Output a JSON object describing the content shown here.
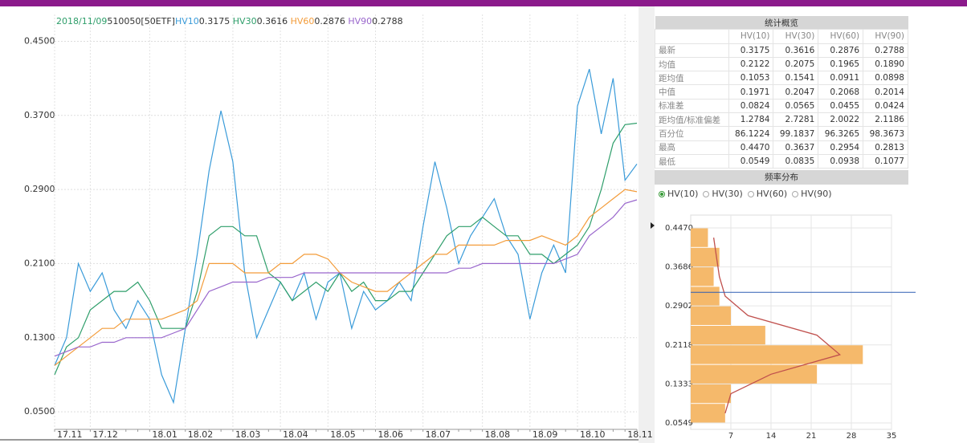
{
  "chart_data": [
    {
      "type": "line",
      "date": "2018/11/09",
      "security": "510050[50ETF]",
      "categories": [
        "17.11",
        null,
        null,
        "17.12",
        null,
        null,
        null,
        null,
        "18.01",
        null,
        null,
        "18.02",
        null,
        null,
        null,
        "18.03",
        null,
        null,
        null,
        "18.04",
        null,
        null,
        null,
        "18.05",
        null,
        null,
        null,
        "18.06",
        null,
        null,
        null,
        "18.07",
        null,
        null,
        null,
        null,
        "18.08",
        null,
        null,
        null,
        "18.09",
        null,
        null,
        null,
        "18.10",
        null,
        null,
        null,
        "18.11",
        null
      ],
      "series": [
        {
          "name": "HV10",
          "color": "#3a9bd9",
          "values": [
            0.1,
            0.13,
            0.21,
            0.18,
            0.2,
            0.16,
            0.14,
            0.17,
            0.15,
            0.09,
            0.06,
            0.14,
            0.22,
            0.31,
            0.375,
            0.32,
            0.2,
            0.13,
            0.16,
            0.19,
            0.17,
            0.2,
            0.15,
            0.19,
            0.2,
            0.14,
            0.18,
            0.16,
            0.17,
            0.19,
            0.17,
            0.25,
            0.32,
            0.27,
            0.21,
            0.24,
            0.26,
            0.28,
            0.24,
            0.22,
            0.15,
            0.2,
            0.23,
            0.2,
            0.38,
            0.42,
            0.35,
            0.41,
            0.3,
            0.3175
          ]
        },
        {
          "name": "HV30",
          "color": "#2e9e6a",
          "values": [
            0.09,
            0.12,
            0.13,
            0.16,
            0.17,
            0.18,
            0.18,
            0.19,
            0.17,
            0.14,
            0.14,
            0.14,
            0.18,
            0.24,
            0.25,
            0.25,
            0.24,
            0.24,
            0.2,
            0.19,
            0.17,
            0.18,
            0.19,
            0.18,
            0.2,
            0.18,
            0.19,
            0.17,
            0.17,
            0.18,
            0.18,
            0.2,
            0.22,
            0.24,
            0.25,
            0.25,
            0.26,
            0.25,
            0.24,
            0.24,
            0.22,
            0.22,
            0.21,
            0.22,
            0.23,
            0.25,
            0.29,
            0.34,
            0.36,
            0.3616
          ]
        },
        {
          "name": "HV60",
          "color": "#f39c3a",
          "values": [
            0.1,
            0.11,
            0.12,
            0.13,
            0.14,
            0.14,
            0.15,
            0.15,
            0.15,
            0.15,
            0.155,
            0.16,
            0.17,
            0.21,
            0.21,
            0.21,
            0.2,
            0.2,
            0.2,
            0.21,
            0.21,
            0.22,
            0.22,
            0.215,
            0.2,
            0.19,
            0.185,
            0.18,
            0.18,
            0.19,
            0.2,
            0.21,
            0.22,
            0.22,
            0.23,
            0.23,
            0.23,
            0.23,
            0.235,
            0.235,
            0.235,
            0.24,
            0.235,
            0.23,
            0.24,
            0.26,
            0.27,
            0.28,
            0.29,
            0.2876
          ]
        },
        {
          "name": "HV90",
          "color": "#9966cc",
          "values": [
            0.11,
            0.115,
            0.12,
            0.12,
            0.125,
            0.125,
            0.13,
            0.13,
            0.13,
            0.13,
            0.135,
            0.14,
            0.16,
            0.18,
            0.185,
            0.19,
            0.19,
            0.19,
            0.195,
            0.195,
            0.195,
            0.2,
            0.2,
            0.2,
            0.2,
            0.2,
            0.2,
            0.2,
            0.2,
            0.2,
            0.2,
            0.2,
            0.2,
            0.2,
            0.205,
            0.205,
            0.21,
            0.21,
            0.21,
            0.21,
            0.21,
            0.21,
            0.21,
            0.215,
            0.22,
            0.24,
            0.25,
            0.26,
            0.275,
            0.2788
          ]
        }
      ],
      "ylim": [
        0.031,
        0.479
      ],
      "yticks": [
        {
          "value": 0.05,
          "label": "0.0500"
        },
        {
          "value": 0.13,
          "label": "0.1300"
        },
        {
          "value": 0.21,
          "label": "0.2100"
        },
        {
          "value": 0.29,
          "label": "0.2900"
        },
        {
          "value": 0.37,
          "label": "0.3700"
        },
        {
          "value": 0.45,
          "label": "0.4500"
        }
      ],
      "grid": true
    },
    {
      "type": "histogram",
      "orientation": "horizontal",
      "color": "#f5b96b",
      "bins": [
        0.0549,
        0.0941,
        0.1333,
        0.1725,
        0.2118,
        0.251,
        0.2902,
        0.3294,
        0.3686,
        0.4078,
        0.447
      ],
      "counts": [
        6,
        7,
        22,
        30,
        13,
        7,
        5,
        4,
        5,
        3
      ],
      "curve": {
        "color": "#c0504d",
        "values": [
          6,
          7,
          14,
          26,
          22,
          10,
          6,
          5,
          4.5,
          4
        ]
      },
      "marker_line": {
        "color": "#2f5fb3",
        "value": 0.3175
      },
      "ylim": [
        0.0549,
        0.4728
      ],
      "yticks": [
        {
          "value": 0.0549,
          "label": "0.0549"
        },
        {
          "value": 0.1333,
          "label": "0.1333"
        },
        {
          "value": 0.2118,
          "label": "0.2118"
        },
        {
          "value": 0.2902,
          "label": "0.2902"
        },
        {
          "value": 0.3686,
          "label": "0.3686"
        },
        {
          "value": 0.447,
          "label": "0.4470"
        }
      ],
      "xlim": [
        0,
        35
      ],
      "xticks": [
        7,
        14,
        21,
        28,
        35
      ],
      "grid": true
    }
  ],
  "stats_table": {
    "title": "统计概览",
    "columns": [
      "HV(10)",
      "HV(30)",
      "HV(60)",
      "HV(90)"
    ],
    "rows": [
      {
        "label": "最新",
        "values": [
          "0.3175",
          "0.3616",
          "0.2876",
          "0.2788"
        ]
      },
      {
        "label": "均值",
        "values": [
          "0.2122",
          "0.2075",
          "0.1965",
          "0.1890"
        ]
      },
      {
        "label": "距均值",
        "values": [
          "0.1053",
          "0.1541",
          "0.0911",
          "0.0898"
        ]
      },
      {
        "label": "中值",
        "values": [
          "0.1971",
          "0.2047",
          "0.2068",
          "0.2014"
        ]
      },
      {
        "label": "标准差",
        "values": [
          "0.0824",
          "0.0565",
          "0.0455",
          "0.0424"
        ]
      },
      {
        "label": "距均值/标准偏差",
        "values": [
          "1.2784",
          "2.7281",
          "2.0022",
          "2.1186"
        ]
      },
      {
        "label": "百分位",
        "values": [
          "86.1224",
          "99.1837",
          "96.3265",
          "98.3673"
        ]
      },
      {
        "label": "最高",
        "values": [
          "0.4470",
          "0.3637",
          "0.2954",
          "0.2813"
        ]
      },
      {
        "label": "最低",
        "values": [
          "0.0549",
          "0.0835",
          "0.0938",
          "0.1077"
        ]
      }
    ]
  },
  "frequency_panel": {
    "title": "频率分布",
    "options": [
      "HV(10)",
      "HV(30)",
      "HV(60)",
      "HV(90)"
    ],
    "selected": 0
  }
}
